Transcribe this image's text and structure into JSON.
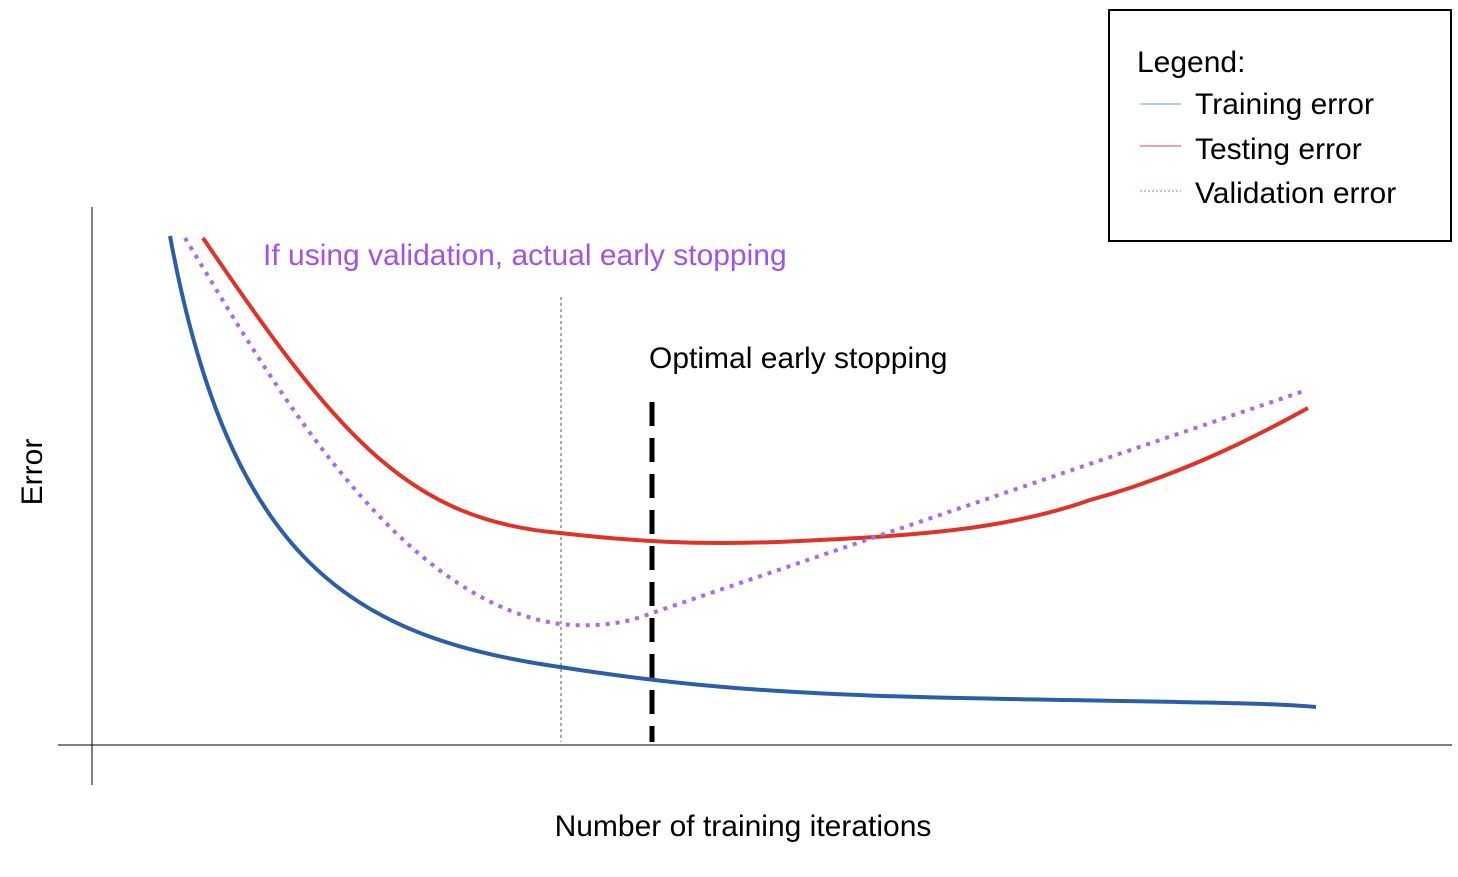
{
  "axes": {
    "ylabel": "Error",
    "xlabel": "Number of training iterations"
  },
  "annotations": {
    "validation_stop": "If using validation, actual early stopping",
    "optimal_stop": "Optimal early stopping"
  },
  "legend": {
    "title": "Legend:",
    "placement": "top-right",
    "items": [
      {
        "label": "Training error",
        "color": "#5b9bd5",
        "style": "solid"
      },
      {
        "label": "Testing error",
        "color": "#e8453c",
        "style": "solid"
      },
      {
        "label": "Validation error",
        "color": "#a96ae8",
        "style": "dotted"
      }
    ]
  },
  "colors": {
    "training": "#2b5ea8",
    "testing": "#e03328",
    "validation": "#a96ae8",
    "validation_text": "#a352e6",
    "axis": "#000000"
  }
}
